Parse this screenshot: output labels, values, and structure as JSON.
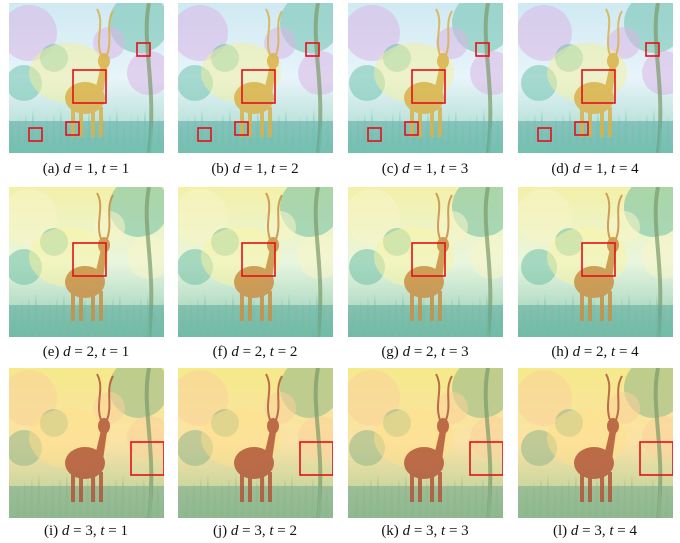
{
  "figure": {
    "rows": [
      {
        "palette": "cool",
        "panels": [
          {
            "label": "(a)",
            "d": "1",
            "t": "1"
          },
          {
            "label": "(b)",
            "d": "1",
            "t": "2"
          },
          {
            "label": "(c)",
            "d": "1",
            "t": "3"
          },
          {
            "label": "(d)",
            "d": "1",
            "t": "4"
          }
        ]
      },
      {
        "palette": "mid",
        "panels": [
          {
            "label": "(e)",
            "d": "2",
            "t": "1"
          },
          {
            "label": "(f)",
            "d": "2",
            "t": "2"
          },
          {
            "label": "(g)",
            "d": "2",
            "t": "3"
          },
          {
            "label": "(h)",
            "d": "2",
            "t": "4"
          }
        ]
      },
      {
        "palette": "warm",
        "panels": [
          {
            "label": "(i)",
            "d": "3",
            "t": "1"
          },
          {
            "label": "(j)",
            "d": "3",
            "t": "2"
          },
          {
            "label": "(k)",
            "d": "3",
            "t": "3"
          },
          {
            "label": "(l)",
            "d": "3",
            "t": "4"
          }
        ]
      }
    ],
    "highlight_color": "#e3101a"
  }
}
